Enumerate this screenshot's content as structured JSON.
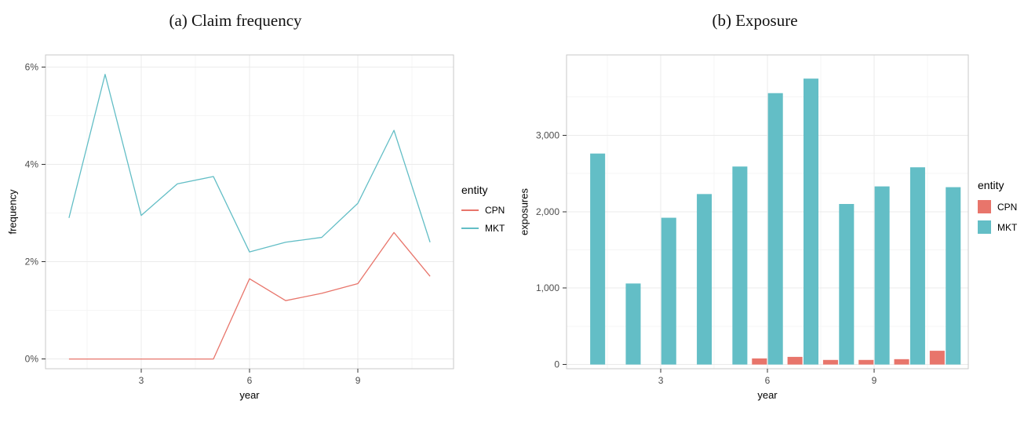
{
  "figure": {
    "background": "#ffffff",
    "panel_border_color": "#c9c9c9",
    "grid_major_color": "#ebebeb",
    "grid_minor_color": "#f5f5f5"
  },
  "chart_data": [
    {
      "type": "line",
      "title": "(a) Claim frequency",
      "xlabel": "year",
      "ylabel": "frequency",
      "x": [
        1,
        2,
        3,
        4,
        5,
        6,
        7,
        8,
        9,
        10,
        11
      ],
      "series": [
        {
          "name": "CPN",
          "color": "#E8756B",
          "values": [
            0,
            0,
            0,
            0,
            0,
            1.65,
            1.2,
            1.35,
            1.55,
            2.6,
            1.7
          ]
        },
        {
          "name": "MKT",
          "color": "#63BEC6",
          "values": [
            2.9,
            5.85,
            2.95,
            3.6,
            3.75,
            2.2,
            2.4,
            2.5,
            3.2,
            4.7,
            2.4
          ]
        }
      ],
      "xlim": [
        0.35,
        11.65
      ],
      "ylim": [
        -0.2,
        6.25
      ],
      "xticks": [
        3,
        6,
        9
      ],
      "xtick_labels": [
        "3",
        "6",
        "9"
      ],
      "yticks": [
        0,
        2,
        4,
        6
      ],
      "ytick_labels": [
        "0%",
        "2%",
        "4%",
        "6%"
      ],
      "xminor": [
        1.5,
        4.5,
        7.5,
        10.5
      ],
      "yminor": [
        1,
        3,
        5
      ],
      "grid": true,
      "legend": {
        "title": "entity",
        "position": "right"
      }
    },
    {
      "type": "bar",
      "title": "(b) Exposure",
      "xlabel": "year",
      "ylabel": "exposures",
      "x": [
        1,
        2,
        3,
        4,
        5,
        6,
        7,
        8,
        9,
        10,
        11
      ],
      "series": [
        {
          "name": "CPN",
          "color": "#E8756B",
          "values": [
            0,
            0,
            0,
            0,
            0,
            80,
            100,
            60,
            60,
            70,
            180
          ]
        },
        {
          "name": "MKT",
          "color": "#63BEC6",
          "values": [
            2760,
            1060,
            1920,
            2230,
            2590,
            3550,
            3740,
            2100,
            2330,
            2580,
            2320
          ]
        }
      ],
      "xlim": [
        0.35,
        11.65
      ],
      "ylim": [
        -55,
        4050
      ],
      "xticks": [
        3,
        6,
        9
      ],
      "xtick_labels": [
        "3",
        "6",
        "9"
      ],
      "yticks": [
        0,
        1000,
        2000,
        3000
      ],
      "ytick_labels": [
        "0",
        "1,000",
        "2,000",
        "3,000"
      ],
      "xminor": [
        1.5,
        4.5,
        7.5,
        10.5
      ],
      "yminor": [
        500,
        1500,
        2500,
        3500
      ],
      "bar_width": 0.42,
      "bar_offset": 0.225,
      "grid": true,
      "legend": {
        "title": "entity",
        "position": "right"
      }
    }
  ]
}
